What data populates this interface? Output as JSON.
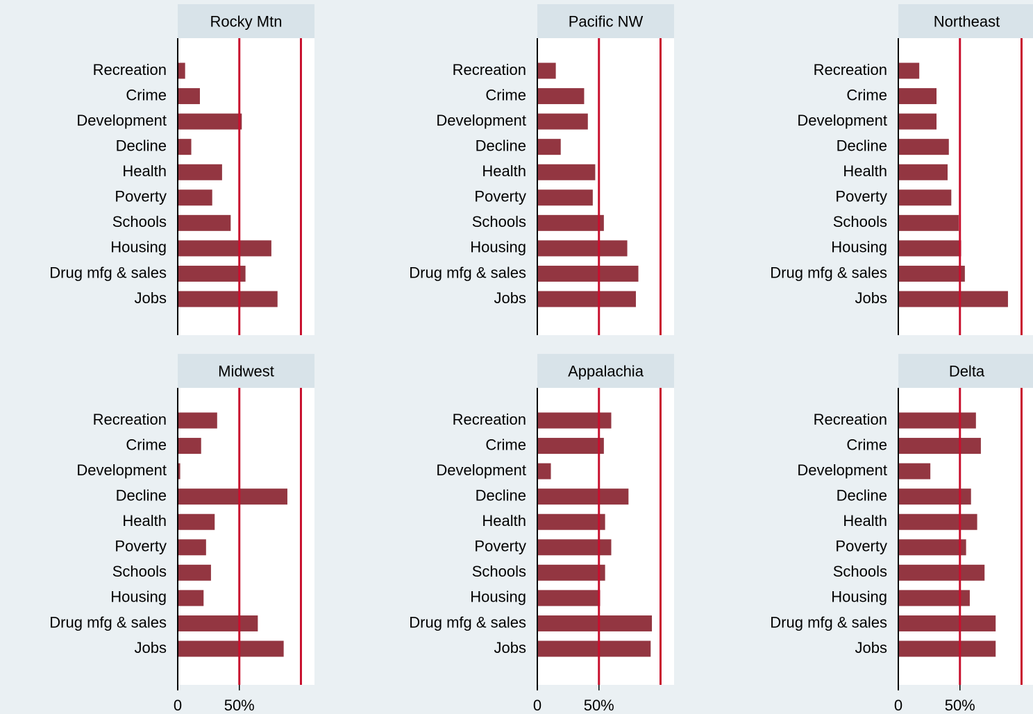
{
  "chart_data": [
    {
      "type": "bar",
      "title": "Rocky Mtn",
      "categories": [
        "Recreation",
        "Crime",
        "Development",
        "Decline",
        "Health",
        "Poverty",
        "Schools",
        "Housing",
        "Drug mfg & sales",
        "Jobs"
      ],
      "values": [
        6,
        18,
        52,
        11,
        36,
        28,
        43,
        76,
        55,
        81
      ],
      "color": "#933641",
      "xlim": [
        0,
        111
      ],
      "ref_lines": [
        50,
        100
      ],
      "ref_color": "#c8102e"
    },
    {
      "type": "bar",
      "title": "Pacific NW",
      "categories": [
        "Recreation",
        "Crime",
        "Development",
        "Decline",
        "Health",
        "Poverty",
        "Schools",
        "Housing",
        "Drug mfg & sales",
        "Jobs"
      ],
      "values": [
        15,
        38,
        41,
        19,
        47,
        45,
        54,
        73,
        82,
        80
      ],
      "color": "#933641",
      "xlim": [
        0,
        111
      ],
      "ref_lines": [
        50,
        100
      ],
      "ref_color": "#c8102e"
    },
    {
      "type": "bar",
      "title": "Northeast",
      "categories": [
        "Recreation",
        "Crime",
        "Development",
        "Decline",
        "Health",
        "Poverty",
        "Schools",
        "Housing",
        "Drug mfg & sales",
        "Jobs"
      ],
      "values": [
        17,
        31,
        31,
        41,
        40,
        43,
        49,
        51,
        54,
        89
      ],
      "color": "#933641",
      "xlim": [
        0,
        111
      ],
      "ref_lines": [
        50,
        100
      ],
      "ref_color": "#c8102e"
    },
    {
      "type": "bar",
      "title": "Midwest",
      "categories": [
        "Recreation",
        "Crime",
        "Development",
        "Decline",
        "Health",
        "Poverty",
        "Schools",
        "Housing",
        "Drug mfg & sales",
        "Jobs"
      ],
      "values": [
        32,
        19,
        2,
        89,
        30,
        23,
        27,
        21,
        65,
        86
      ],
      "color": "#933641",
      "xlim": [
        0,
        111
      ],
      "xticks": [
        0,
        {
          "value": 50,
          "label": "50%"
        }
      ],
      "ref_lines": [
        50,
        100
      ],
      "ref_color": "#c8102e"
    },
    {
      "type": "bar",
      "title": "Appalachia",
      "categories": [
        "Recreation",
        "Crime",
        "Development",
        "Decline",
        "Health",
        "Poverty",
        "Schools",
        "Housing",
        "Drug mfg & sales",
        "Jobs"
      ],
      "values": [
        60,
        54,
        11,
        74,
        55,
        60,
        55,
        51,
        93,
        92
      ],
      "color": "#933641",
      "xlim": [
        0,
        111
      ],
      "xticks": [
        0,
        {
          "value": 50,
          "label": "50%"
        }
      ],
      "ref_lines": [
        50,
        100
      ],
      "ref_color": "#c8102e"
    },
    {
      "type": "bar",
      "title": "Delta",
      "categories": [
        "Recreation",
        "Crime",
        "Development",
        "Decline",
        "Health",
        "Poverty",
        "Schools",
        "Housing",
        "Drug mfg & sales",
        "Jobs"
      ],
      "values": [
        63,
        67,
        26,
        59,
        64,
        55,
        70,
        58,
        79,
        79
      ],
      "color": "#933641",
      "xlim": [
        0,
        111
      ],
      "xticks": [
        0,
        {
          "value": 50,
          "label": "50%"
        }
      ],
      "ref_lines": [
        50,
        100
      ],
      "ref_color": "#c8102e"
    }
  ]
}
